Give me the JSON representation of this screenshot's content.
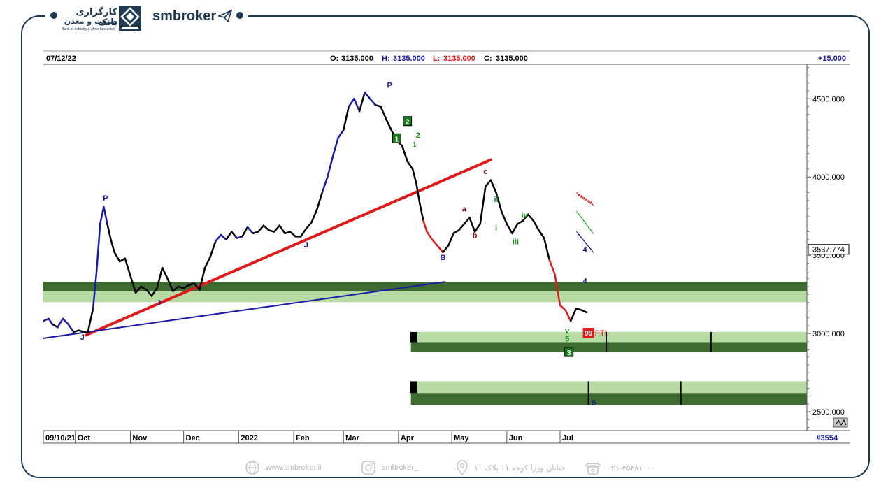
{
  "brand": {
    "name_fa_line1": "کارگزاری بانک",
    "name_fa_line2": "صنعت و معدن",
    "name_en": "Bank of Industry & Mine Securities",
    "site_logo": "smbroker"
  },
  "chart_data": {
    "type": "line",
    "header": {
      "date": "07/12/22",
      "o_label": "O:",
      "o_value": "3135.000",
      "h_label": "H:",
      "h_value": "3135.000",
      "l_label": "L:",
      "l_value": "3135.000",
      "c_label": "C:",
      "c_value": "3135.000",
      "change": "+15.000"
    },
    "y_ticks": [
      "4500.000",
      "4000.000",
      "3500.000",
      "3000.000",
      "2500.000"
    ],
    "y_tick_values": [
      4500,
      4000,
      3500,
      3000,
      2500
    ],
    "ylim": [
      2380,
      4720
    ],
    "last_price_label": "3537.774",
    "x_ticks": [
      {
        "label": "09/10/21",
        "x": 0
      },
      {
        "label": "Oct",
        "x": 18
      },
      {
        "label": "Nov",
        "x": 49
      },
      {
        "label": "Dec",
        "x": 79
      },
      {
        "label": "2022",
        "x": 110
      },
      {
        "label": "Feb",
        "x": 141
      },
      {
        "label": "Mar",
        "x": 169
      },
      {
        "label": "Apr",
        "x": 200
      },
      {
        "label": "May",
        "x": 230
      },
      {
        "label": "Jun",
        "x": 261
      },
      {
        "label": "Jul",
        "x": 291
      }
    ],
    "xlim": [
      0,
      430
    ],
    "bar_count": "#3554",
    "series": [
      {
        "color": "#000000",
        "points": [
          [
            0,
            3080
          ],
          [
            3,
            3095
          ],
          [
            5,
            3060
          ],
          [
            8,
            3040
          ],
          [
            11,
            3095
          ],
          [
            14,
            3060
          ],
          [
            17,
            3010
          ],
          [
            20,
            3020
          ],
          [
            23,
            3010
          ],
          [
            25,
            3005
          ],
          [
            28,
            3160
          ],
          [
            30,
            3400
          ],
          [
            32,
            3700
          ],
          [
            34,
            3810
          ],
          [
            36,
            3700
          ],
          [
            38,
            3600
          ],
          [
            40,
            3520
          ],
          [
            43,
            3460
          ],
          [
            46,
            3480
          ],
          [
            49,
            3370
          ],
          [
            52,
            3260
          ],
          [
            55,
            3300
          ],
          [
            58,
            3280
          ],
          [
            61,
            3240
          ],
          [
            64,
            3290
          ],
          [
            67,
            3420
          ],
          [
            70,
            3350
          ],
          [
            73,
            3270
          ],
          [
            76,
            3300
          ],
          [
            79,
            3290
          ],
          [
            82,
            3310
          ],
          [
            85,
            3320
          ],
          [
            88,
            3280
          ],
          [
            91,
            3420
          ],
          [
            94,
            3490
          ],
          [
            97,
            3590
          ],
          [
            100,
            3630
          ],
          [
            103,
            3600
          ],
          [
            106,
            3650
          ],
          [
            109,
            3610
          ],
          [
            112,
            3620
          ],
          [
            115,
            3680
          ],
          [
            118,
            3640
          ],
          [
            121,
            3650
          ],
          [
            124,
            3690
          ],
          [
            127,
            3660
          ],
          [
            130,
            3650
          ],
          [
            133,
            3690
          ],
          [
            136,
            3640
          ],
          [
            139,
            3650
          ],
          [
            142,
            3620
          ],
          [
            145,
            3620
          ],
          [
            148,
            3670
          ],
          [
            151,
            3710
          ],
          [
            154,
            3790
          ],
          [
            157,
            3900
          ],
          [
            160,
            4000
          ],
          [
            163,
            4130
          ],
          [
            166,
            4250
          ],
          [
            169,
            4300
          ],
          [
            172,
            4450
          ],
          [
            175,
            4500
          ],
          [
            178,
            4420
          ],
          [
            181,
            4540
          ],
          [
            184,
            4500
          ],
          [
            187,
            4460
          ],
          [
            190,
            4450
          ],
          [
            193,
            4370
          ],
          [
            196,
            4300
          ],
          [
            199,
            4230
          ],
          [
            202,
            4200
          ],
          [
            205,
            4100
          ],
          [
            208,
            4050
          ],
          [
            210,
            3960
          ],
          [
            212,
            3830
          ],
          [
            214,
            3720
          ],
          [
            216,
            3650
          ],
          [
            219,
            3600
          ],
          [
            222,
            3560
          ],
          [
            225,
            3520
          ],
          [
            228,
            3560
          ],
          [
            231,
            3640
          ],
          [
            234,
            3660
          ],
          [
            237,
            3700
          ],
          [
            240,
            3740
          ],
          [
            243,
            3650
          ],
          [
            246,
            3700
          ],
          [
            249,
            3940
          ],
          [
            252,
            3980
          ],
          [
            255,
            3900
          ],
          [
            258,
            3780
          ],
          [
            261,
            3700
          ],
          [
            264,
            3640
          ],
          [
            267,
            3700
          ],
          [
            270,
            3720
          ],
          [
            273,
            3760
          ],
          [
            276,
            3720
          ],
          [
            279,
            3660
          ],
          [
            282,
            3610
          ],
          [
            285,
            3470
          ],
          [
            288,
            3380
          ],
          [
            291,
            3180
          ],
          [
            294,
            3150
          ],
          [
            297,
            3080
          ],
          [
            300,
            3160
          ],
          [
            303,
            3150
          ],
          [
            306,
            3135
          ]
        ]
      }
    ],
    "blue_segments": [
      [
        0,
        4
      ],
      [
        6,
        16
      ],
      [
        28,
        36
      ],
      [
        96,
        102
      ],
      [
        108,
        112
      ],
      [
        113,
        118
      ],
      [
        155,
        161
      ],
      [
        162,
        168
      ],
      [
        171,
        178
      ],
      [
        181,
        186
      ]
    ],
    "red_segments": [
      [
        213,
        224
      ],
      [
        284,
        296
      ]
    ],
    "wave_labels": [
      {
        "text": "P",
        "x": 35,
        "y": 3850,
        "color": "#1a1a8c"
      },
      {
        "text": "J",
        "x": 22,
        "y": 2960,
        "color": "#1a1a8c"
      },
      {
        "text": "J",
        "x": 65,
        "y": 3180,
        "color": "#1a1a8c"
      },
      {
        "text": "J",
        "x": 148,
        "y": 3550,
        "color": "#1a1a8c"
      },
      {
        "text": "P",
        "x": 195,
        "y": 4570,
        "color": "#1a1a8c"
      },
      {
        "text": "B",
        "x": 225,
        "y": 3470,
        "color": "#1a1a8c"
      },
      {
        "text": "a",
        "x": 237,
        "y": 3780,
        "color": "#8b1a1a"
      },
      {
        "text": "b",
        "x": 243,
        "y": 3610,
        "color": "#8b1a1a"
      },
      {
        "text": "c",
        "x": 249,
        "y": 4020,
        "color": "#8b1a1a"
      },
      {
        "text": "ii",
        "x": 255,
        "y": 3840,
        "color": "#1a8c1a"
      },
      {
        "text": "i",
        "x": 255,
        "y": 3660,
        "color": "#1a8c1a"
      },
      {
        "text": "iv",
        "x": 271,
        "y": 3740,
        "color": "#1a8c1a"
      },
      {
        "text": "iii",
        "x": 266,
        "y": 3570,
        "color": "#1a8c1a"
      },
      {
        "text": "v",
        "x": 295,
        "y": 3000,
        "color": "#1a8c1a"
      },
      {
        "text": "5",
        "x": 295,
        "y": 2950,
        "color": "#1a8c1a"
      },
      {
        "text": "2",
        "x": 211,
        "y": 4250,
        "color": "#1a8c1a"
      },
      {
        "text": "1",
        "x": 209,
        "y": 4190,
        "color": "#1a8c1a"
      },
      {
        "text": "4",
        "x": 305,
        "y": 3520,
        "color": "#1a1a8c"
      },
      {
        "text": "4",
        "x": 305,
        "y": 3320,
        "color": "#1a1a8c"
      },
      {
        "text": "5",
        "x": 310,
        "y": 2540,
        "color": "#1a1a8c"
      }
    ],
    "boxed_labels": [
      {
        "text": "2",
        "x": 205,
        "y": 4355
      },
      {
        "text": "1",
        "x": 199,
        "y": 4245
      },
      {
        "text": "3",
        "x": 296,
        "y": 2880
      }
    ],
    "marker_label": {
      "text": "99",
      "x": 307,
      "y": 3005
    },
    "marker_suffix": "PTI",
    "trendlines": [
      {
        "color": "#e01a1a",
        "width": 4,
        "p1": [
          24,
          2990
        ],
        "p2": [
          252,
          4110
        ]
      },
      {
        "color": "#1a1aaa",
        "width": 2,
        "p1": [
          0,
          2970
        ],
        "p2": [
          226,
          3330
        ]
      }
    ],
    "zones": [
      {
        "x0": 0,
        "x1": 430,
        "ylo": 3270,
        "yhi": 3330,
        "color": "#3e6b2f"
      },
      {
        "x0": 0,
        "x1": 430,
        "ylo": 3200,
        "yhi": 3270,
        "color": "#b7dba2"
      },
      {
        "x0": 207,
        "x1": 430,
        "ylo": 2945,
        "yhi": 3010,
        "color": "#b7dba2"
      },
      {
        "x0": 207,
        "x1": 430,
        "ylo": 2880,
        "yhi": 2945,
        "color": "#3e6b2f"
      },
      {
        "x0": 207,
        "x1": 430,
        "ylo": 2620,
        "yhi": 2695,
        "color": "#b7dba2"
      },
      {
        "x0": 207,
        "x1": 430,
        "ylo": 2545,
        "yhi": 2620,
        "color": "#3e6b2f"
      }
    ],
    "zone_caps": [
      {
        "x": 207,
        "ylo": 2945,
        "yhi": 3010
      },
      {
        "x": 207,
        "ylo": 2620,
        "yhi": 2695
      }
    ],
    "vbars": [
      {
        "x": 317,
        "ylo": 2880,
        "yhi": 3010
      },
      {
        "x": 376,
        "ylo": 2880,
        "yhi": 3010
      },
      {
        "x": 307,
        "ylo": 2545,
        "yhi": 2695
      },
      {
        "x": 359,
        "ylo": 2545,
        "yhi": 2695
      }
    ],
    "hatch_marks": [
      {
        "color": "#e01a1a",
        "p1": [
          301,
          3890
        ],
        "p2": [
          309,
          3830
        ]
      },
      {
        "color": "#1aaa1a",
        "p1": [
          301,
          3770
        ],
        "p2": [
          309,
          3650
        ]
      },
      {
        "color": "#1a1aaa",
        "p1": [
          301,
          3640
        ],
        "p2": [
          309,
          3530
        ]
      }
    ]
  },
  "footer": {
    "website": "www.smbroker.ir",
    "instagram": "smbroker_",
    "address": "خیابان وزرا کوچه ۱۱ پلاک ۱۰",
    "phone": "۰۲۱-۴۵۴۸۱۰۰۰"
  },
  "colors": {
    "accent": "#1e3a52",
    "dark_zone": "#3e6b2f",
    "light_zone": "#b7dba2",
    "trend_red": "#e01a1a",
    "trend_blue": "#1a1aaa"
  }
}
